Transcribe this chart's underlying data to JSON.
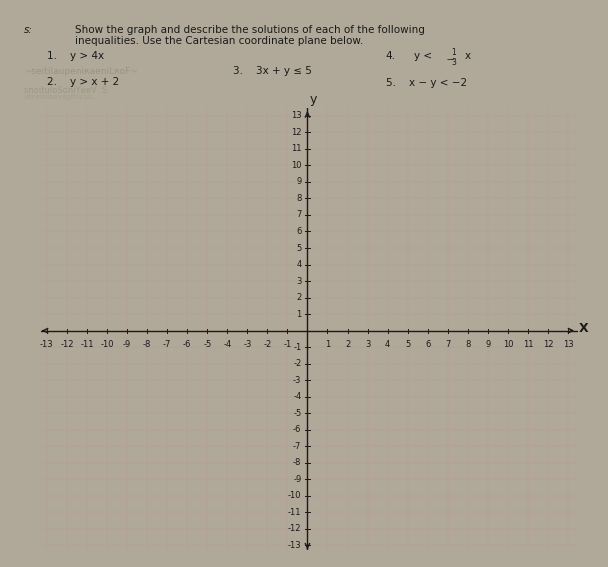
{
  "title_line1": "Show the graph and describe the solutions of each of the following",
  "title_line2": "inequalities. Use the Cartesian coordinate plane below.",
  "xmin": -13,
  "xmax": 13,
  "ymin": -13,
  "ymax": 13,
  "xlabel": "X",
  "ylabel": "y",
  "bg_outer": "#b0a898",
  "bg_paper": "#ddd8cc",
  "grid_color": "#c09898",
  "axis_color": "#1a1a1a",
  "text_color": "#1a1a1a",
  "mirror_color": "#888070",
  "label_fontsize": 6.0,
  "axis_label_fontsize": 9,
  "header_fontsize": 7.5,
  "problem_fontsize": 7.5
}
